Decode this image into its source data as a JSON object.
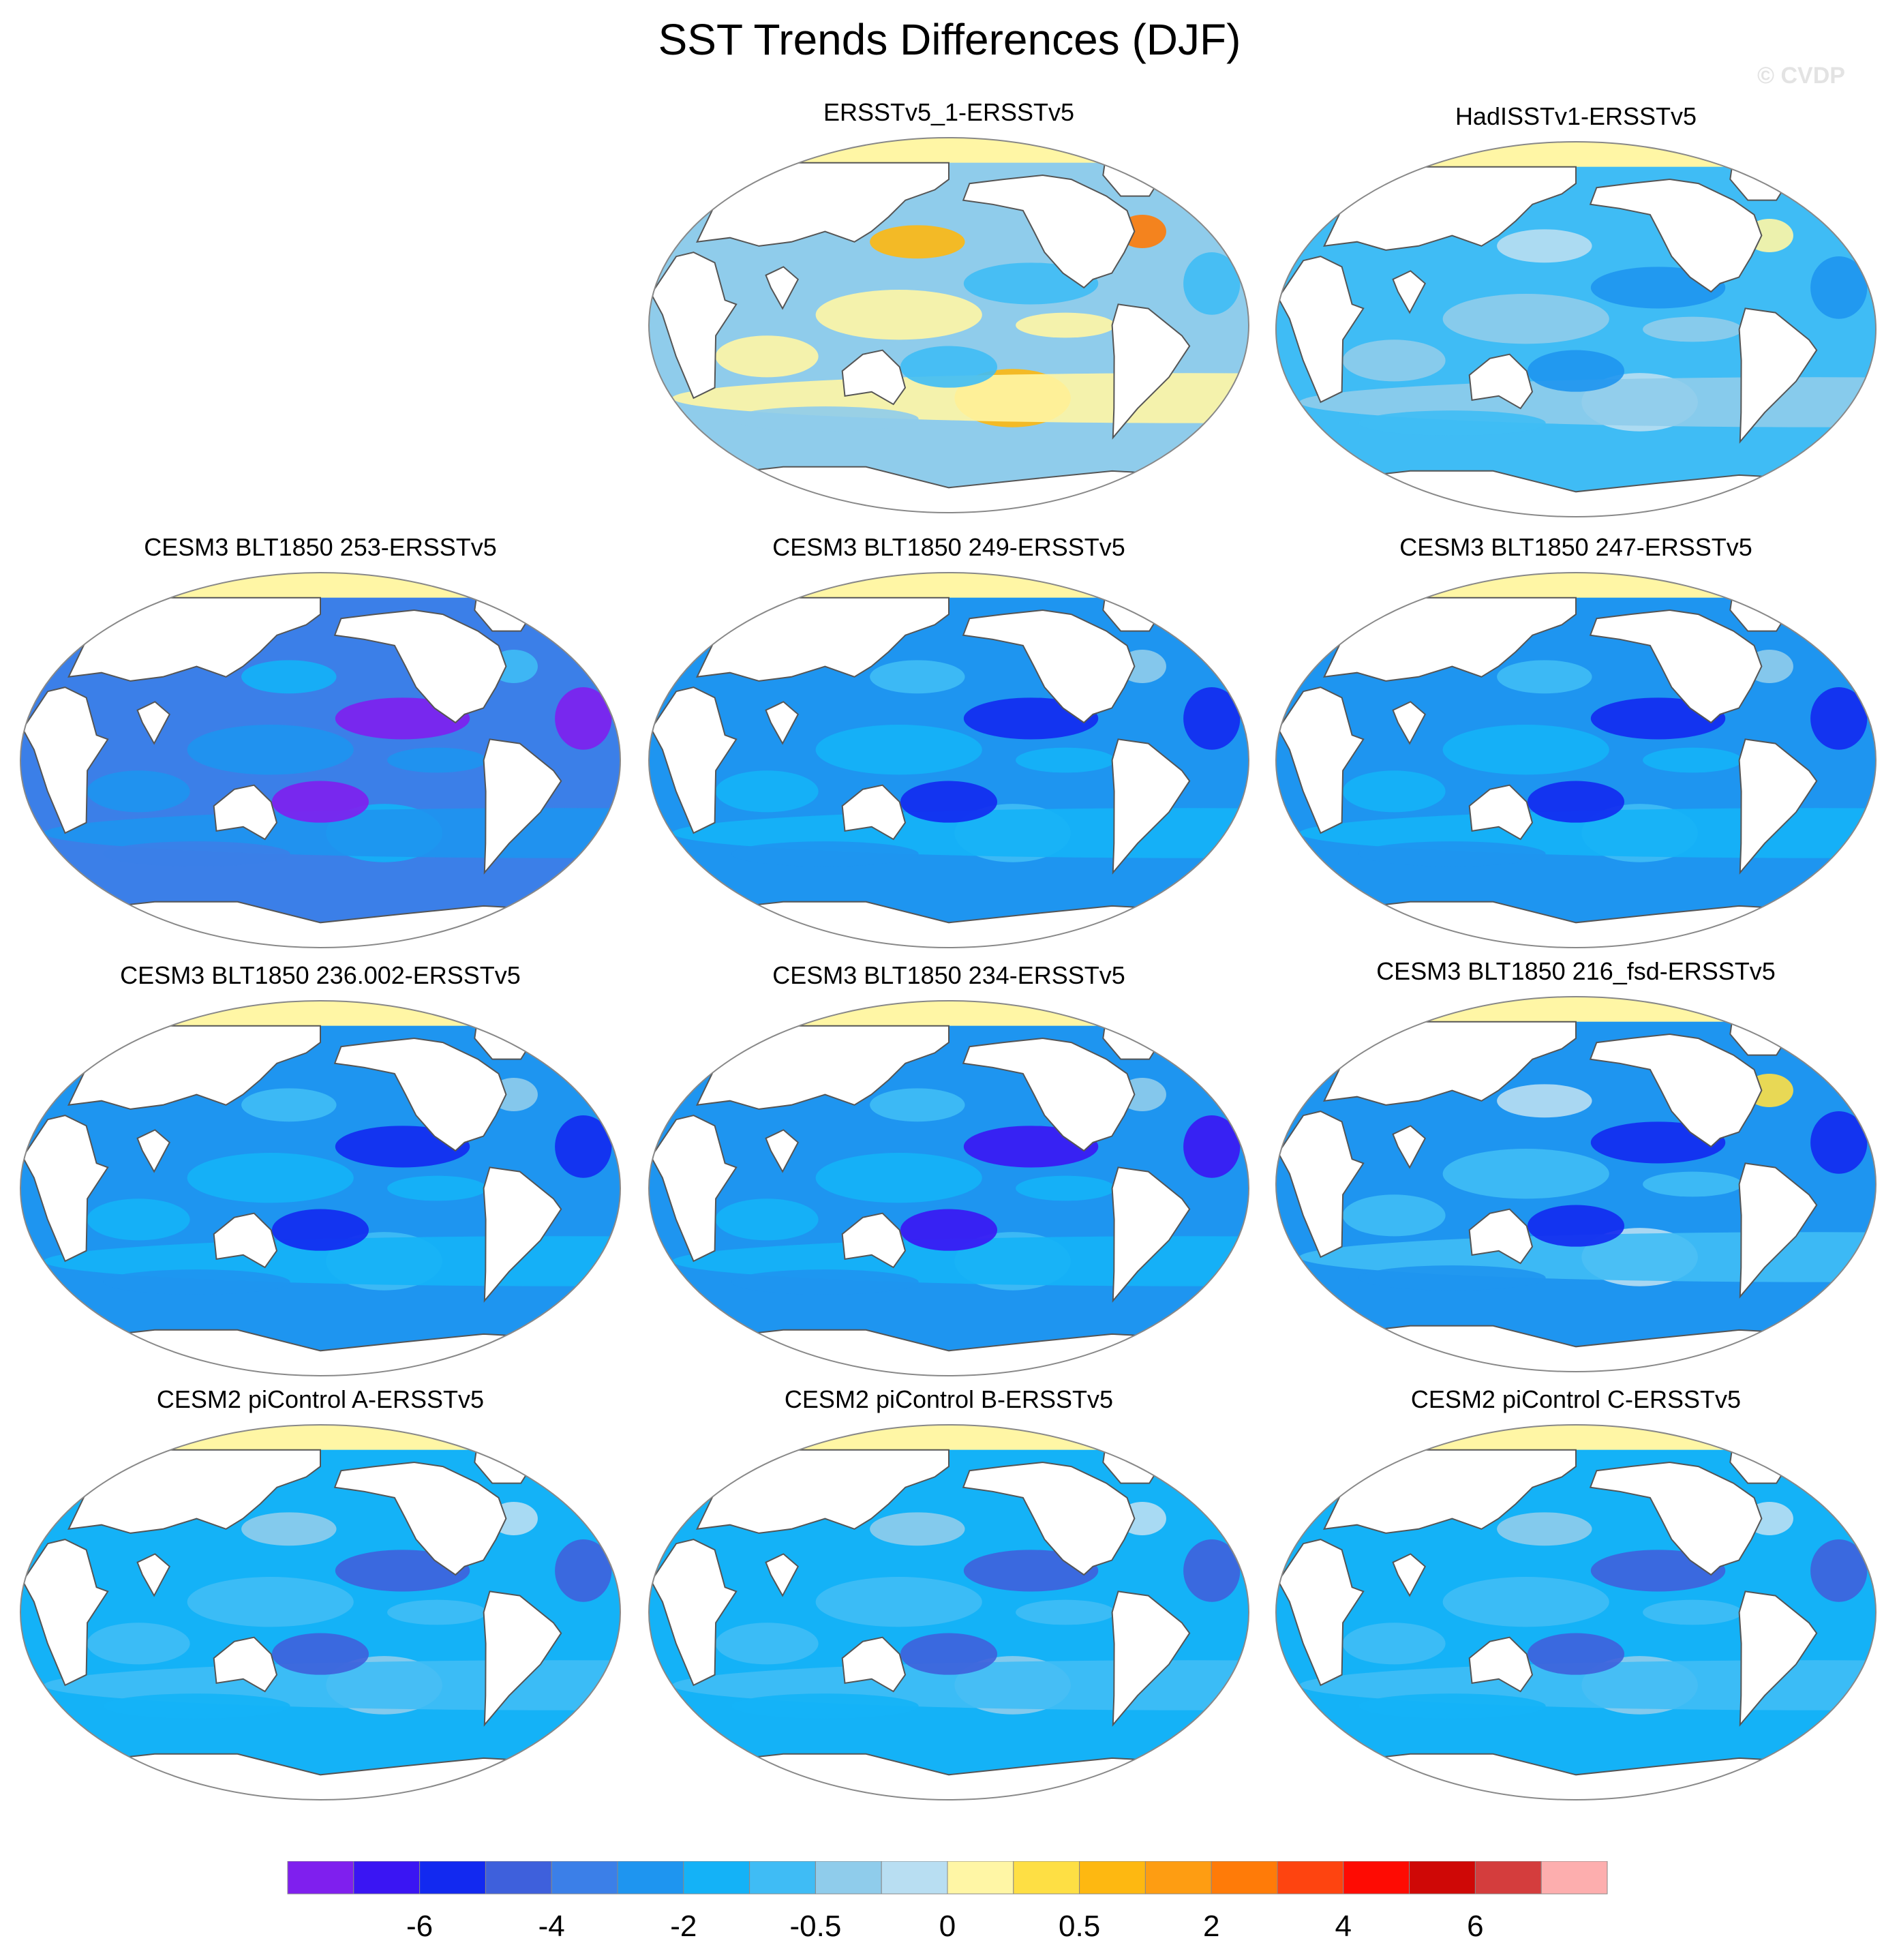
{
  "title": "SST Trends Differences (DJF)",
  "watermark": "© CVDP",
  "colors": {
    "ocean_background": "#fff6a5",
    "land": "#ffffff",
    "coast": "#555555",
    "arctic_band": "#fff6a5"
  },
  "panels": [
    {
      "title": "ERSSTv5_1-ERSSTv5",
      "base": 8,
      "warm": 2,
      "cool": 0
    },
    {
      "title": "HadISSTv1-ERSSTv5",
      "base": 7,
      "warm": 1,
      "cool": 1
    },
    {
      "title": "CESM3 BLT1850 253-ERSSTv5",
      "base": 4,
      "warm": 1,
      "cool": 3
    },
    {
      "title": "CESM3 BLT1850 249-ERSSTv5",
      "base": 5,
      "warm": 1,
      "cool": 2
    },
    {
      "title": "CESM3 BLT1850 247-ERSSTv5",
      "base": 5,
      "warm": 1,
      "cool": 2
    },
    {
      "title": "CESM3 BLT1850 236.002-ERSSTv5",
      "base": 5,
      "warm": 1,
      "cool": 2
    },
    {
      "title": "CESM3 BLT1850 234-ERSSTv5",
      "base": 5,
      "warm": 1,
      "cool": 3
    },
    {
      "title": "CESM3 BLT1850 216_fsd-ERSSTv5",
      "base": 5,
      "warm": 2,
      "cool": 2
    },
    {
      "title": "CESM2 piControl A-ERSSTv5",
      "base": 6,
      "warm": 1,
      "cool": 2
    },
    {
      "title": "CESM2 piControl B-ERSSTv5",
      "base": 6,
      "warm": 1,
      "cool": 2
    },
    {
      "title": "CESM2 piControl C-ERSSTv5",
      "base": 6,
      "warm": 1,
      "cool": 2
    }
  ],
  "colorbar": {
    "colors": [
      "#7f1fee",
      "#3a15f3",
      "#1229f0",
      "#3e60dc",
      "#3b7fe8",
      "#1e95f0",
      "#14b2f7",
      "#3fbcf5",
      "#8fcceb",
      "#b8def2",
      "#fff6a5",
      "#fedf44",
      "#feb811",
      "#fe9d12",
      "#ff7b08",
      "#fe4410",
      "#fe0b03",
      "#cf0806",
      "#d43d3d",
      "#fdaeae"
    ],
    "labels": [
      "-6",
      "-4",
      "-2",
      "-0.5",
      "0",
      "0.5",
      "2",
      "4",
      "6"
    ]
  }
}
